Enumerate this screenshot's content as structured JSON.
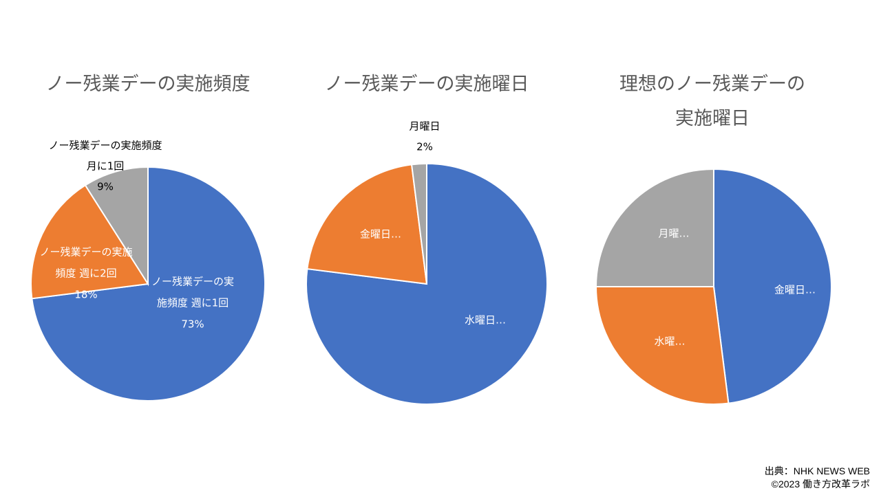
{
  "chart_data": [
    {
      "type": "pie",
      "title": "ノー残業デーの実施頻度",
      "series_name": "ノー残業デーの実施頻度",
      "slices": [
        {
          "label": "ノー残業デーの実施頻度 週に1回",
          "value": 73,
          "value_label": "73%",
          "color": "#4472C4",
          "label_lines": [
            "ノー残業デーの実",
            "施頻度 週に1回",
            "73%"
          ]
        },
        {
          "label": "ノー残業デーの実施頻度 週に2回",
          "value": 18,
          "value_label": "18%",
          "color": "#ED7D31",
          "label_lines": [
            "ノー残業デーの実施",
            "頻度 週に2回",
            "18%"
          ]
        },
        {
          "label": "ノー残業デーの実施頻度 月に1回",
          "value": 9,
          "value_label": "9%",
          "color": "#A5A5A5",
          "label_lines": [
            "ノー残業デーの実施頻度",
            "月に1回",
            "9%"
          ]
        }
      ]
    },
    {
      "type": "pie",
      "title": "ノー残業デーの実施曜日",
      "slices": [
        {
          "label": "水曜日…",
          "value": 77,
          "color": "#4472C4",
          "label_lines": [
            "水曜日…"
          ]
        },
        {
          "label": "金曜日…",
          "value": 21,
          "color": "#ED7D31",
          "label_lines": [
            "金曜日…"
          ]
        },
        {
          "label": "月曜日",
          "value": 2,
          "value_label": "2%",
          "color": "#A5A5A5",
          "label_lines": [
            "月曜日",
            "2%"
          ]
        }
      ]
    },
    {
      "type": "pie",
      "title": "理想のノー残業デーの実施曜日",
      "title_lines": [
        "理想のノー残業デーの",
        "実施曜日"
      ],
      "slices": [
        {
          "label": "金曜日…",
          "value": 48,
          "color": "#4472C4",
          "label_lines": [
            "金曜日…"
          ]
        },
        {
          "label": "水曜…",
          "value": 27,
          "color": "#ED7D31",
          "label_lines": [
            "水曜…"
          ]
        },
        {
          "label": "月曜…",
          "value": 25,
          "color": "#A5A5A5",
          "label_lines": [
            "月曜…"
          ]
        }
      ]
    }
  ],
  "source": {
    "line1": "出典：NHK NEWS WEB",
    "line2": "©2023 働き方改革ラボ"
  }
}
